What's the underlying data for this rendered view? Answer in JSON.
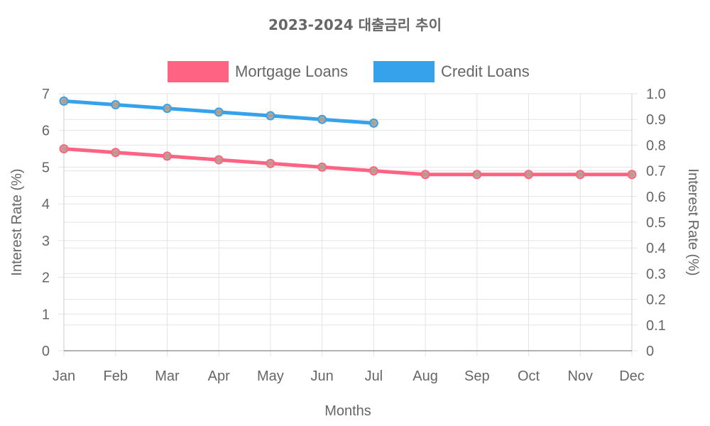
{
  "chart_data": {
    "type": "line",
    "title": "2023-2024 대출금리 추이",
    "categories": [
      "Jan",
      "Feb",
      "Mar",
      "Apr",
      "May",
      "Jun",
      "Jul",
      "Aug",
      "Sep",
      "Oct",
      "Nov",
      "Dec"
    ],
    "xlabel": "Months",
    "ylabel": "Interest Rate (%)",
    "ylabel_right": "Interest Rate (%)",
    "ylim": [
      0,
      7
    ],
    "ylim_right": [
      0,
      1.0
    ],
    "yticks": [
      "0",
      "1",
      "2",
      "3",
      "4",
      "5",
      "6",
      "7"
    ],
    "yticks_right": [
      "0",
      "0.1",
      "0.2",
      "0.3",
      "0.4",
      "0.5",
      "0.6",
      "0.7",
      "0.8",
      "0.9",
      "1.0"
    ],
    "grid": true,
    "legend_position": "top-center",
    "series": [
      {
        "name": "Mortgage Loans",
        "color": "#ff6384",
        "values": [
          5.5,
          5.4,
          5.3,
          5.2,
          5.1,
          5.0,
          4.9,
          4.8,
          4.8,
          4.8,
          4.8,
          4.8
        ]
      },
      {
        "name": "Credit Loans",
        "color": "#36a2eb",
        "values": [
          6.8,
          6.7,
          6.6,
          6.5,
          6.4,
          6.3,
          6.2,
          null,
          null,
          null,
          null,
          null
        ]
      }
    ]
  }
}
